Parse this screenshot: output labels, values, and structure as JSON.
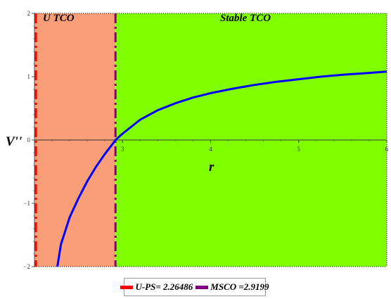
{
  "chart_data": {
    "type": "line",
    "xlabel": "r",
    "ylabel": "V''",
    "xlim": [
      2.0,
      6.0
    ],
    "ylim": [
      -2.0,
      2.0
    ],
    "x_ticks": [
      {
        "value": 3,
        "label": "3"
      },
      {
        "value": 4,
        "label": "4"
      },
      {
        "value": 5,
        "label": "5"
      },
      {
        "value": 6,
        "label": "6"
      }
    ],
    "y_ticks": [
      {
        "value": -2,
        "label": "−2"
      },
      {
        "value": -1,
        "label": "−1"
      },
      {
        "value": 0,
        "label": "0"
      },
      {
        "value": 1,
        "label": "1"
      },
      {
        "value": 2,
        "label": "2"
      }
    ],
    "regions": [
      {
        "label": "U TCO",
        "x_start": 2.0,
        "x_end": 2.9199,
        "color": "#fa9e79"
      },
      {
        "label": "Stable  TCO",
        "x_start": 2.9199,
        "x_end": 6.0,
        "color": "#80ff00"
      }
    ],
    "vertical_lines": [
      {
        "x": 2.26486,
        "color": "#ff0000",
        "style": "dashdot"
      },
      {
        "x": 2.9199,
        "color": "#800080",
        "style": "dashdot"
      }
    ],
    "series": [
      {
        "color": "#0000ff",
        "x": [
          2.26,
          2.3,
          2.4,
          2.5,
          2.6,
          2.7,
          2.8,
          2.9,
          2.92,
          3.0,
          3.2,
          3.4,
          3.6,
          3.8,
          4.0,
          4.25,
          4.5,
          4.75,
          5.0,
          5.25,
          5.5,
          5.75,
          6.0
        ],
        "y": [
          -2.05,
          -1.65,
          -1.22,
          -0.92,
          -0.65,
          -0.42,
          -0.22,
          -0.04,
          0.0,
          0.1,
          0.32,
          0.47,
          0.58,
          0.67,
          0.74,
          0.81,
          0.87,
          0.92,
          0.96,
          1.0,
          1.03,
          1.055,
          1.08
        ]
      }
    ],
    "legend": {
      "position": "bottom-center",
      "entries": [
        {
          "label": "U-PS= 2.26486",
          "color": "#ff0000"
        },
        {
          "label": "MSCO =2.9199",
          "color": "#800080"
        }
      ]
    }
  }
}
